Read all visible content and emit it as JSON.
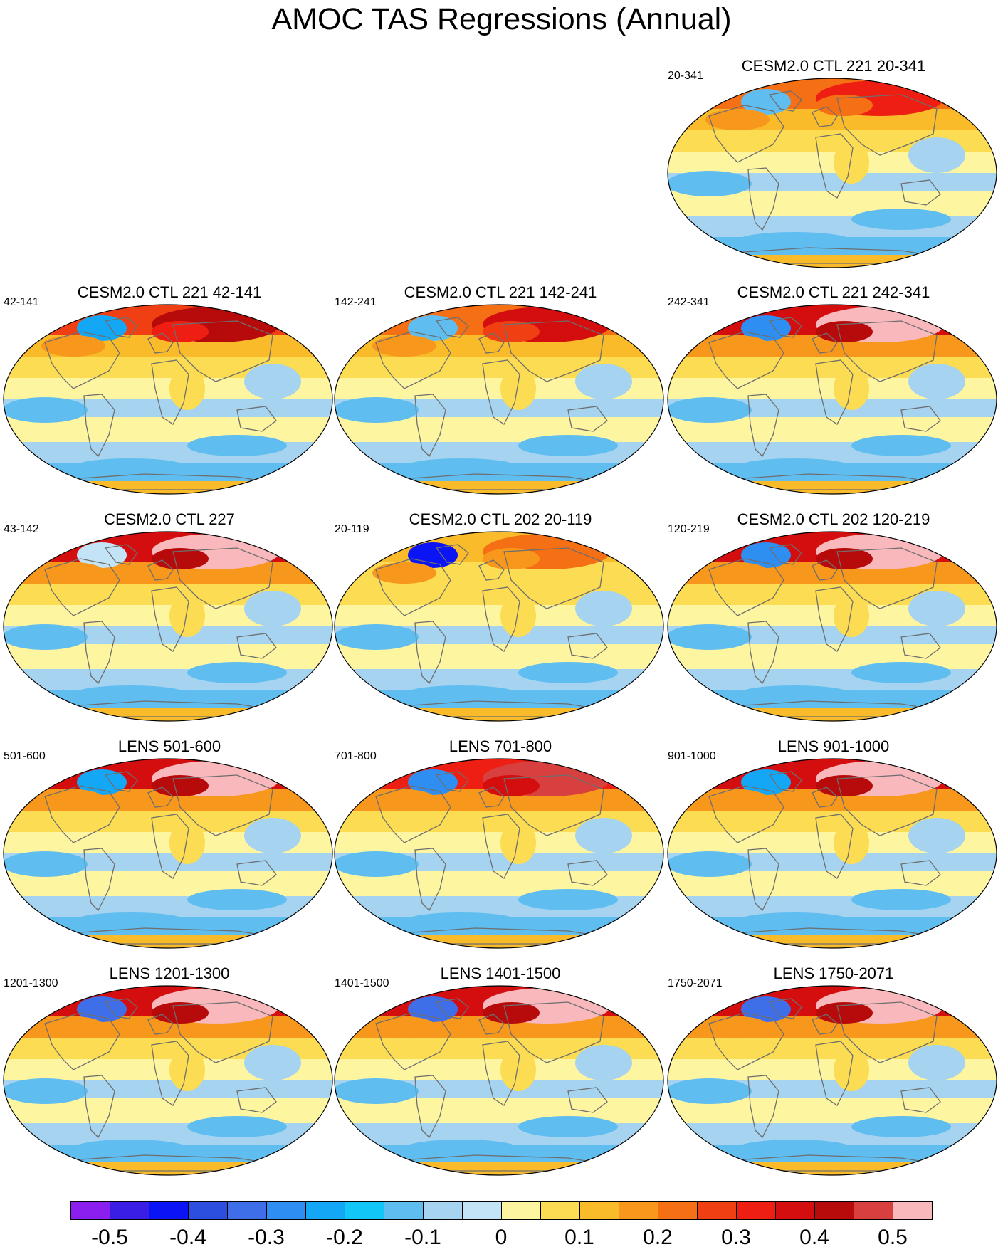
{
  "title": "AMOC TAS Regressions (Annual)",
  "panels": [
    {
      "title": "CESM2.0 CTL 221 20-341",
      "years": "20-341",
      "warm_north": 0.3,
      "cold_lab": 0.15
    },
    {
      "title": "CESM2.0 CTL 221 42-141",
      "years": "42-141",
      "warm_north": 0.4,
      "cold_lab": 0.25
    },
    {
      "title": "CESM2.0 CTL 221 142-241",
      "years": "142-241",
      "warm_north": 0.35,
      "cold_lab": 0.15
    },
    {
      "title": "CESM2.0 CTL 221 242-341",
      "years": "242-341",
      "warm_north": 0.5,
      "cold_lab": 0.3
    },
    {
      "title": "CESM2.0 CTL 227",
      "years": "43-142",
      "warm_north": 0.55,
      "cold_lab": 0.05
    },
    {
      "title": "CESM2.0 CTL 202 20-119",
      "years": "20-119",
      "warm_north": 0.2,
      "cold_lab": 0.45
    },
    {
      "title": "CESM2.0 CTL 202 120-219",
      "years": "120-219",
      "warm_north": 0.5,
      "cold_lab": 0.3
    },
    {
      "title": "LENS 501-600",
      "years": "501-600",
      "warm_north": 0.5,
      "cold_lab": 0.25
    },
    {
      "title": "LENS 701-800",
      "years": "701-800",
      "warm_north": 0.45,
      "cold_lab": 0.3
    },
    {
      "title": "LENS 901-1000",
      "years": "901-1000",
      "warm_north": 0.5,
      "cold_lab": 0.25
    },
    {
      "title": "LENS 1201-1300",
      "years": "1201-1300",
      "warm_north": 0.5,
      "cold_lab": 0.35
    },
    {
      "title": "LENS 1401-1500",
      "years": "1401-1500",
      "warm_north": 0.5,
      "cold_lab": 0.35
    },
    {
      "title": "LENS 1750-2071",
      "years": "1750-2071",
      "warm_north": 0.5,
      "cold_lab": 0.35
    }
  ],
  "colorbar": {
    "colors": [
      "#8a1ff0",
      "#3a1ee6",
      "#0a14f5",
      "#2c4fe0",
      "#3f6fe8",
      "#2e8ef2",
      "#14a7f5",
      "#12c6f7",
      "#5fbdf0",
      "#a5d3f0",
      "#c3e4f7",
      "#fdf5a0",
      "#fbdc52",
      "#f9bb2a",
      "#f7971c",
      "#f56f14",
      "#f04013",
      "#ee1f12",
      "#d40e0e",
      "#b70b0b",
      "#d84040",
      "#f8b8bc"
    ],
    "levels": [
      -0.55,
      -0.5,
      -0.45,
      -0.4,
      -0.35,
      -0.3,
      -0.25,
      -0.2,
      -0.15,
      -0.1,
      -0.05,
      0,
      0.05,
      0.1,
      0.15,
      0.2,
      0.25,
      0.3,
      0.35,
      0.4,
      0.45,
      0.5,
      0.55
    ],
    "labels": [
      "-0.5",
      "-0.4",
      "-0.3",
      "-0.2",
      "-0.1",
      "0",
      "0.1",
      "0.2",
      "0.3",
      "0.4",
      "0.5"
    ],
    "label_values": [
      -0.5,
      -0.4,
      -0.3,
      -0.2,
      -0.1,
      0,
      0.1,
      0.2,
      0.3,
      0.4,
      0.5
    ]
  }
}
